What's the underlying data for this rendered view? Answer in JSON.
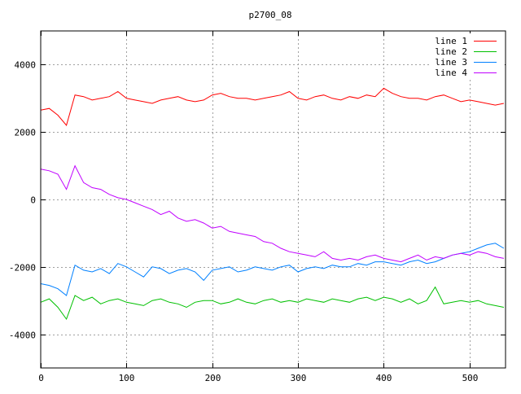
{
  "chart_data": {
    "type": "line",
    "title": "p2700_08",
    "xlabel": "",
    "ylabel": "",
    "xlim": [
      0,
      542
    ],
    "ylim": [
      -5000,
      5000
    ],
    "xticks": [
      0,
      100,
      200,
      300,
      400,
      500
    ],
    "yticks": [
      -4000,
      -2000,
      0,
      2000,
      4000
    ],
    "grid": true,
    "legend_position": "top-right",
    "x": [
      0,
      10,
      20,
      30,
      40,
      50,
      60,
      70,
      80,
      90,
      100,
      110,
      120,
      130,
      140,
      150,
      160,
      170,
      180,
      190,
      200,
      210,
      220,
      230,
      240,
      250,
      260,
      270,
      280,
      290,
      300,
      310,
      320,
      330,
      340,
      350,
      360,
      370,
      380,
      390,
      400,
      410,
      420,
      430,
      440,
      450,
      460,
      470,
      480,
      490,
      500,
      510,
      520,
      530,
      540
    ],
    "series": [
      {
        "name": "line 1",
        "color": "#ff0000",
        "values": [
          2650,
          2700,
          2500,
          2200,
          3100,
          3050,
          2950,
          3000,
          3050,
          3200,
          3000,
          2950,
          2900,
          2850,
          2950,
          3000,
          3050,
          2950,
          2900,
          2950,
          3100,
          3150,
          3050,
          3000,
          3000,
          2950,
          3000,
          3050,
          3100,
          3200,
          3000,
          2950,
          3050,
          3100,
          3000,
          2950,
          3050,
          3000,
          3100,
          3050,
          3300,
          3150,
          3050,
          3000,
          3000,
          2950,
          3050,
          3100,
          3000,
          2900,
          2950,
          2900,
          2850,
          2800,
          2850
        ]
      },
      {
        "name": "line 2",
        "color": "#00c000",
        "values": [
          -3050,
          -2950,
          -3200,
          -3550,
          -2850,
          -3000,
          -2900,
          -3100,
          -3000,
          -2950,
          -3050,
          -3100,
          -3150,
          -3000,
          -2950,
          -3050,
          -3100,
          -3200,
          -3050,
          -3000,
          -3000,
          -3100,
          -3050,
          -2950,
          -3050,
          -3100,
          -3000,
          -2950,
          -3050,
          -3000,
          -3050,
          -2950,
          -3000,
          -3050,
          -2950,
          -3000,
          -3050,
          -2950,
          -2900,
          -3000,
          -2900,
          -2950,
          -3050,
          -2950,
          -3100,
          -3000,
          -2600,
          -3100,
          -3050,
          -3000,
          -3050,
          -3000,
          -3100,
          -3150,
          -3200
        ]
      },
      {
        "name": "line 3",
        "color": "#0080ff",
        "values": [
          -2500,
          -2550,
          -2650,
          -2850,
          -1950,
          -2100,
          -2150,
          -2050,
          -2200,
          -1900,
          -2000,
          -2150,
          -2300,
          -2000,
          -2050,
          -2200,
          -2100,
          -2050,
          -2150,
          -2400,
          -2100,
          -2050,
          -2000,
          -2150,
          -2100,
          -2000,
          -2050,
          -2100,
          -2000,
          -1950,
          -2150,
          -2050,
          -2000,
          -2050,
          -1950,
          -2000,
          -2000,
          -1900,
          -1950,
          -1850,
          -1850,
          -1900,
          -1950,
          -1850,
          -1800,
          -1900,
          -1850,
          -1750,
          -1650,
          -1600,
          -1550,
          -1450,
          -1350,
          -1300,
          -1450
        ]
      },
      {
        "name": "line 4",
        "color": "#c000ff",
        "values": [
          900,
          850,
          750,
          300,
          1000,
          500,
          350,
          300,
          150,
          50,
          0,
          -100,
          -200,
          -300,
          -450,
          -350,
          -550,
          -650,
          -600,
          -700,
          -850,
          -800,
          -950,
          -1000,
          -1050,
          -1100,
          -1250,
          -1300,
          -1450,
          -1550,
          -1600,
          -1650,
          -1700,
          -1550,
          -1750,
          -1800,
          -1750,
          -1800,
          -1700,
          -1650,
          -1750,
          -1800,
          -1850,
          -1750,
          -1650,
          -1800,
          -1700,
          -1750,
          -1650,
          -1600,
          -1650,
          -1550,
          -1600,
          -1700,
          -1750
        ]
      }
    ]
  }
}
